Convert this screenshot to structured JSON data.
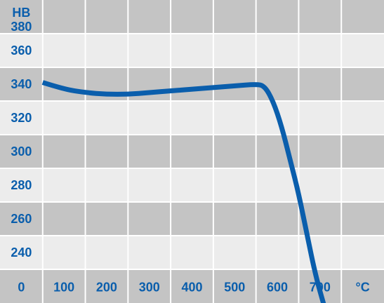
{
  "chart_data": {
    "type": "line",
    "ylabel": "HB",
    "xlabel": "°C",
    "x_ticks": [
      "0",
      "100",
      "200",
      "300",
      "400",
      "500",
      "600",
      "700"
    ],
    "y_ticks": [
      "380",
      "360",
      "340",
      "320",
      "300",
      "280",
      "260",
      "240"
    ],
    "xlim": [
      0,
      800
    ],
    "ylim": [
      220,
      400
    ],
    "grid": true,
    "series": [
      {
        "x": [
          0,
          50,
          100,
          150,
          200,
          250,
          300,
          350,
          400,
          450,
          500,
          520,
          540,
          560,
          580,
          600,
          620,
          640,
          660
        ],
        "values": [
          351,
          347,
          345,
          344,
          344,
          345,
          346,
          347,
          348,
          349,
          350,
          349,
          340,
          325,
          305,
          285,
          260,
          236,
          218
        ]
      }
    ],
    "colors": {
      "line": "#0a5eac",
      "text": "#0a5eac",
      "dark_band": "#c4c4c4",
      "light_band": "#ececec",
      "grid_line": "#ffffff"
    }
  }
}
